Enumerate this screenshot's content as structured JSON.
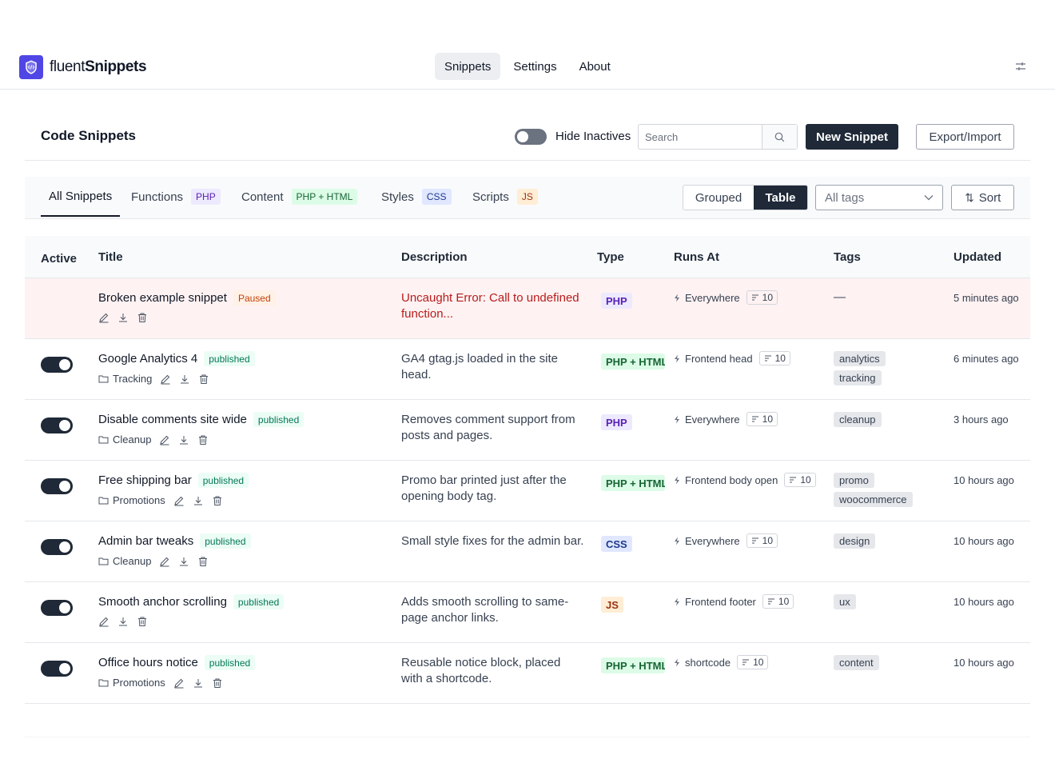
{
  "brand": {
    "name_light": "fluent",
    "name_bold": "Snippets",
    "logo_icon": "shield-code-icon"
  },
  "nav": {
    "links": [
      {
        "label": "Snippets",
        "active": true
      },
      {
        "label": "Settings",
        "active": false
      },
      {
        "label": "About",
        "active": false
      }
    ],
    "settings_icon": "sliders-icon"
  },
  "header": {
    "title": "Code Snippets",
    "hide_inactives_label": "Hide Inactives",
    "hide_inactives_on": false,
    "search_placeholder": "Search",
    "search_value": "",
    "new_snippet_label": "New Snippet",
    "export_import_label": "Export/Import"
  },
  "tabs": [
    {
      "label": "All Snippets",
      "badge": "",
      "active": true
    },
    {
      "label": "Functions",
      "badge": "PHP",
      "badge_kind": "php"
    },
    {
      "label": "Content",
      "badge": "PHP + HTML",
      "badge_kind": "html"
    },
    {
      "label": "Styles",
      "badge": "CSS",
      "badge_kind": "css"
    },
    {
      "label": "Scripts",
      "badge": "JS",
      "badge_kind": "js"
    }
  ],
  "view_toggle": {
    "grouped_label": "Grouped",
    "table_label": "Table",
    "selected": "Table"
  },
  "tags_filter": {
    "value": "All tags"
  },
  "sort": {
    "label": "Sort"
  },
  "columns": {
    "active": "Active",
    "title": "Title",
    "description": "Description",
    "type": "Type",
    "runs_at": "Runs At",
    "tags": "Tags",
    "updated": "Updated"
  },
  "rows": [
    {
      "active": null,
      "title": "Broken example snippet",
      "status": "Paused",
      "group": "",
      "description": "Uncaught Error: Call to undefined function...",
      "error": true,
      "type": "PHP",
      "runs_at": "Everywhere",
      "priority": "10",
      "tags": [],
      "no_tags": "—",
      "updated": "5 minutes ago"
    },
    {
      "active": true,
      "title": "Google Analytics 4",
      "status": "published",
      "group": "Tracking",
      "description": "GA4 gtag.js loaded in the site head.",
      "error": false,
      "type": "PHP + HTML",
      "runs_at": "Frontend head",
      "priority": "10",
      "tags": [
        "analytics",
        "tracking"
      ],
      "updated": "6 minutes ago"
    },
    {
      "active": true,
      "title": "Disable comments site wide",
      "status": "published",
      "group": "Cleanup",
      "description": "Removes comment support from posts and pages.",
      "error": false,
      "type": "PHP",
      "runs_at": "Everywhere",
      "priority": "10",
      "tags": [
        "cleanup"
      ],
      "updated": "3 hours ago"
    },
    {
      "active": true,
      "title": "Free shipping bar",
      "status": "published",
      "group": "Promotions",
      "description": "Promo bar printed just after the opening body tag.",
      "error": false,
      "type": "PHP + HTML",
      "runs_at": "Frontend body open",
      "priority": "10",
      "tags": [
        "promo",
        "woocommerce"
      ],
      "updated": "10 hours ago"
    },
    {
      "active": true,
      "title": "Admin bar tweaks",
      "status": "published",
      "group": "Cleanup",
      "description": "Small style fixes for the admin bar.",
      "error": false,
      "type": "CSS",
      "runs_at": "Everywhere",
      "priority": "10",
      "tags": [
        "design"
      ],
      "updated": "10 hours ago"
    },
    {
      "active": true,
      "title": "Smooth anchor scrolling",
      "status": "published",
      "group": "",
      "description": "Adds smooth scrolling to same-page anchor links.",
      "error": false,
      "type": "JS",
      "runs_at": "Frontend footer",
      "priority": "10",
      "tags": [
        "ux"
      ],
      "updated": "10 hours ago"
    },
    {
      "active": true,
      "title": "Office hours notice",
      "status": "published",
      "group": "Promotions",
      "description": "Reusable notice block, placed with a shortcode.",
      "error": false,
      "type": "PHP + HTML",
      "runs_at": "shortcode",
      "priority": "10",
      "tags": [
        "content"
      ],
      "updated": "10 hours ago"
    }
  ],
  "colors": {
    "accent": "#4f46e5",
    "dark": "#1f2937",
    "error_bg": "#fef2f2",
    "error_text": "#b91c1c"
  }
}
